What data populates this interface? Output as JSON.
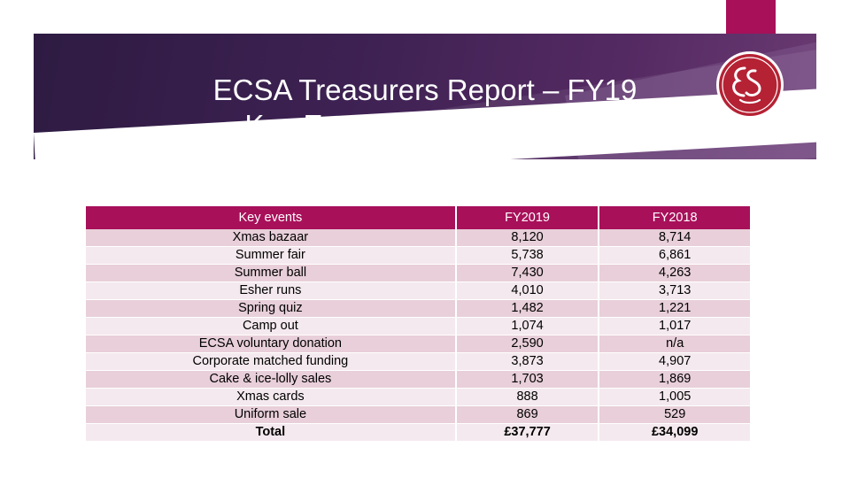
{
  "slide": {
    "title_line1": "ECSA Treasurers Report – FY19",
    "title_line2": "Key Events (accruals basis)"
  },
  "colors": {
    "accent": "#a8105a",
    "banner": "#3d2152",
    "row_dark": "#e8cfd9",
    "row_light": "#f4e9ee"
  },
  "logo": {
    "icon": "ecs-monogram-icon"
  },
  "table": {
    "headers": [
      "Key events",
      "FY2019",
      "FY2018"
    ],
    "rows": [
      [
        "Xmas bazaar",
        "8,120",
        "8,714"
      ],
      [
        "Summer fair",
        "5,738",
        "6,861"
      ],
      [
        "Summer ball",
        "7,430",
        "4,263"
      ],
      [
        "Esher runs",
        "4,010",
        "3,713"
      ],
      [
        "Spring quiz",
        "1,482",
        "1,221"
      ],
      [
        "Camp out",
        "1,074",
        "1,017"
      ],
      [
        "ECSA voluntary donation",
        "2,590",
        "n/a"
      ],
      [
        "Corporate matched funding",
        "3,873",
        "4,907"
      ],
      [
        "Cake & ice-lolly sales",
        "1,703",
        "1,869"
      ],
      [
        "Xmas cards",
        "888",
        "1,005"
      ],
      [
        "Uniform sale",
        "869",
        "529"
      ]
    ],
    "total": [
      "Total",
      "£37,777",
      "£34,099"
    ]
  }
}
